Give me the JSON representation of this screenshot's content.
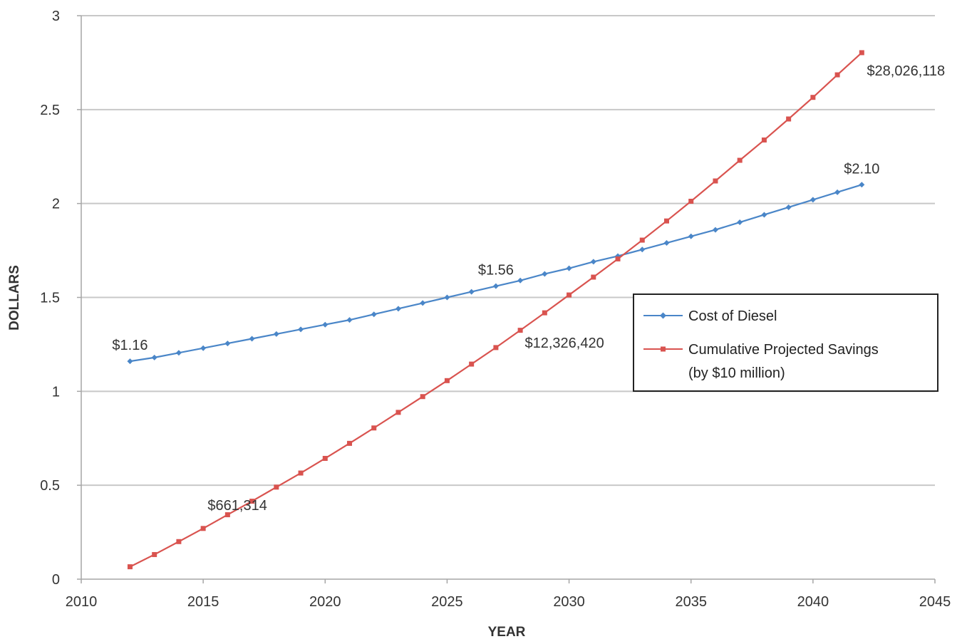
{
  "chart_data": {
    "type": "line",
    "title": "",
    "xlabel": "YEAR",
    "ylabel": "DOLLARS",
    "xlim": [
      2010,
      2045
    ],
    "ylim": [
      0,
      3
    ],
    "x_ticks": [
      2010,
      2015,
      2020,
      2025,
      2030,
      2035,
      2040,
      2045
    ],
    "x_tick_labels": [
      "2010",
      "2015",
      "2020",
      "2025",
      "2030",
      "2035",
      "2040",
      "2045"
    ],
    "y_ticks": [
      0,
      0.5,
      1,
      1.5,
      2,
      2.5,
      3
    ],
    "y_tick_labels": [
      "0",
      "0.5",
      "1",
      "1.5",
      "2",
      "2.5",
      "3"
    ],
    "grid": "horizontal",
    "legend_placement": "center-right",
    "x": [
      2012,
      2013,
      2014,
      2015,
      2016,
      2017,
      2018,
      2019,
      2020,
      2021,
      2022,
      2023,
      2024,
      2025,
      2026,
      2027,
      2028,
      2029,
      2030,
      2031,
      2032,
      2033,
      2034,
      2035,
      2036,
      2037,
      2038,
      2039,
      2040,
      2041,
      2042
    ],
    "series": [
      {
        "name": "Cost of Diesel",
        "color": "#4a86c8",
        "marker": "diamond",
        "values": [
          1.16,
          1.18,
          1.205,
          1.23,
          1.255,
          1.28,
          1.305,
          1.33,
          1.355,
          1.38,
          1.41,
          1.44,
          1.47,
          1.5,
          1.53,
          1.56,
          1.59,
          1.625,
          1.655,
          1.69,
          1.72,
          1.755,
          1.79,
          1.825,
          1.86,
          1.9,
          1.94,
          1.98,
          2.02,
          2.06,
          2.1
        ]
      },
      {
        "name": "Cumulative Projected Savings",
        "name_line2": "(by $10 million)",
        "color": "#d9534f",
        "marker": "square",
        "values": [
          0.066,
          0.131,
          0.2,
          0.27,
          0.343,
          0.415,
          0.49,
          0.565,
          0.643,
          0.723,
          0.805,
          0.888,
          0.972,
          1.057,
          1.145,
          1.233,
          1.325,
          1.418,
          1.513,
          1.608,
          1.705,
          1.805,
          1.907,
          2.012,
          2.12,
          2.23,
          2.338,
          2.45,
          2.565,
          2.685,
          2.803
        ]
      }
    ],
    "annotations": [
      {
        "text": "$1.16",
        "x": 2012,
        "y": 1.16,
        "series": 0
      },
      {
        "text": "$1.56",
        "x": 2027,
        "y": 1.56,
        "series": 0
      },
      {
        "text": "$2.10",
        "x": 2042,
        "y": 2.1,
        "series": 0
      },
      {
        "text": "$661,314",
        "x": 2015,
        "y": 0.27,
        "series": 1
      },
      {
        "text": "$12,326,420",
        "x": 2028,
        "y": 1.233,
        "series": 1
      },
      {
        "text": "$28,026,118",
        "x": 2042,
        "y": 2.803,
        "series": 1
      }
    ]
  }
}
